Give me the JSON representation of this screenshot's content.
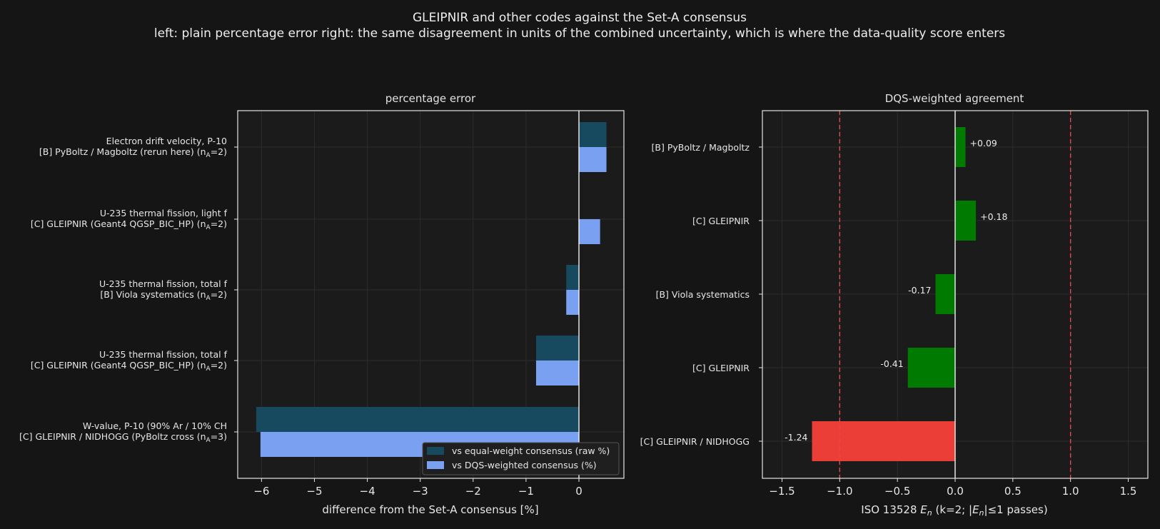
{
  "figure": {
    "title": "GLEIPNIR and other codes against the Set-A consensus",
    "subtitle": "left: plain percentage error   right: the same disagreement in units of the combined uncertainty, which is where the data-quality score enters"
  },
  "colors": {
    "background": "#151515",
    "panel": "#1b1b1b",
    "equal_weight": "#174a5e",
    "dqs_weighted": "#7aa0f2",
    "pass": "#007a00",
    "fail": "#ea3e36",
    "threshold": "#e94848"
  },
  "chart_data": [
    {
      "type": "bar",
      "orientation": "horizontal",
      "title": "percentage error",
      "xlabel": "difference from the Set-A consensus [%]",
      "ylabel": "",
      "xlim": [
        -6.45,
        0.85
      ],
      "xticks": [
        -6,
        -5,
        -4,
        -3,
        -2,
        -1,
        0
      ],
      "xtick_labels": [
        "−6",
        "−5",
        "−4",
        "−3",
        "−2",
        "−1",
        "0"
      ],
      "grid": true,
      "legend_position": "bottom-right",
      "categories": [
        {
          "line1": "Electron drift velocity, P-10",
          "line2": "[B] PyBoltz / Magboltz (rerun here)",
          "n": "2"
        },
        {
          "line1": "U-235 thermal fission, light f",
          "line2": "[C] GLEIPNIR (Geant4 QGSP_BIC_HP)",
          "n": "2"
        },
        {
          "line1": "U-235 thermal fission, total f",
          "line2": "[B] Viola systematics",
          "n": "2"
        },
        {
          "line1": "U-235 thermal fission, total f",
          "line2": "[C] GLEIPNIR (Geant4 QGSP_BIC_HP)",
          "n": "2"
        },
        {
          "line1": "W-value, P-10 (90% Ar / 10% CH",
          "line2": "[C] GLEIPNIR / NIDHOGG (PyBoltz cross",
          "n": "3"
        }
      ],
      "series": [
        {
          "name": "vs equal-weight consensus (raw %)",
          "values": [
            0.52,
            0.0,
            -0.24,
            -0.81,
            -6.1
          ]
        },
        {
          "name": "vs DQS-weighted consensus (%)",
          "values": [
            0.52,
            0.4,
            -0.24,
            -0.81,
            -6.02
          ]
        }
      ]
    },
    {
      "type": "bar",
      "orientation": "horizontal",
      "title": "DQS-weighted agreement",
      "xlabel_prefix": "ISO 13528 ",
      "xlabel_symbol": "E",
      "xlabel_sub": "n",
      "xlabel_suffix": "  (k=2; |",
      "xlabel_symbol2": "E",
      "xlabel_sub2": "n",
      "xlabel_end": "|≤1 passes)",
      "xlim": [
        -1.67,
        1.67
      ],
      "xticks": [
        -1.5,
        -1.0,
        -0.5,
        0.0,
        0.5,
        1.0,
        1.5
      ],
      "xtick_labels": [
        "−1.5",
        "−1.0",
        "−0.5",
        "0.0",
        "0.5",
        "1.0",
        "1.5"
      ],
      "thresholds": [
        -1.0,
        1.0
      ],
      "grid": true,
      "categories": [
        "[B] PyBoltz / Magboltz",
        "[C] GLEIPNIR",
        "[B] Viola systematics",
        "[C] GLEIPNIR",
        "[C] GLEIPNIR / NIDHOGG"
      ],
      "values": [
        0.09,
        0.18,
        -0.17,
        -0.41,
        -1.24
      ],
      "value_labels": [
        "+0.09",
        "+0.18",
        "-0.17",
        "-0.41",
        "-1.24"
      ]
    }
  ]
}
